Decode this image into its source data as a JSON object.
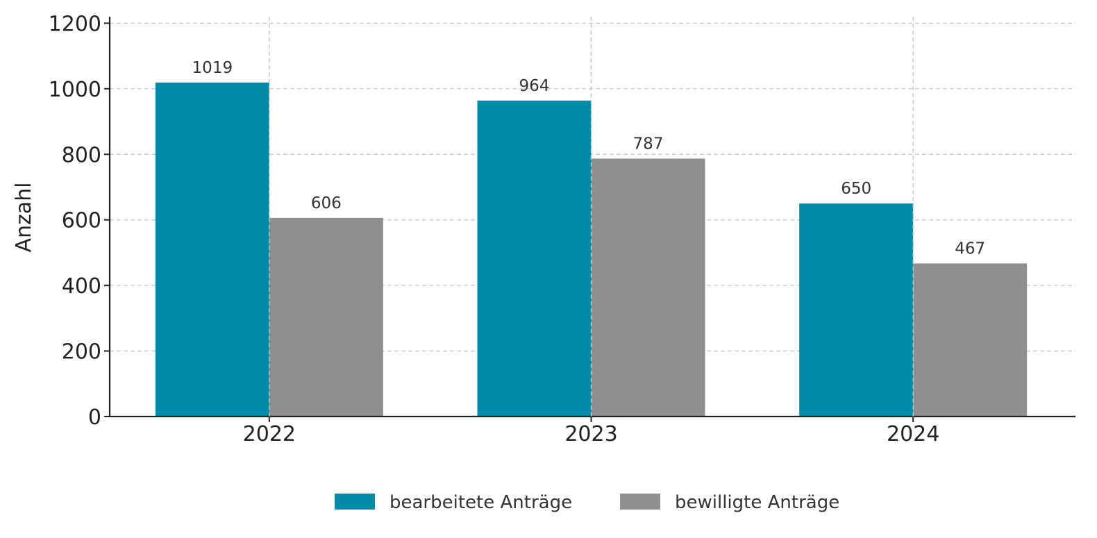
{
  "chart_data": {
    "type": "bar",
    "title": "",
    "xlabel": "",
    "ylabel": "Anzahl",
    "categories": [
      "2022",
      "2023",
      "2024"
    ],
    "series": [
      {
        "name": "bearbeitete Anträge",
        "values": [
          1019,
          964,
          650
        ],
        "color": "#008BA8"
      },
      {
        "name": "bewilligte Anträge",
        "values": [
          606,
          787,
          467
        ],
        "color": "#8F8F8F"
      }
    ],
    "ylim": [
      0,
      1220
    ],
    "yticks": [
      0,
      200,
      400,
      600,
      800,
      1000,
      1200
    ],
    "grid": true,
    "legend_position": "bottom-center",
    "data_labels": true
  }
}
